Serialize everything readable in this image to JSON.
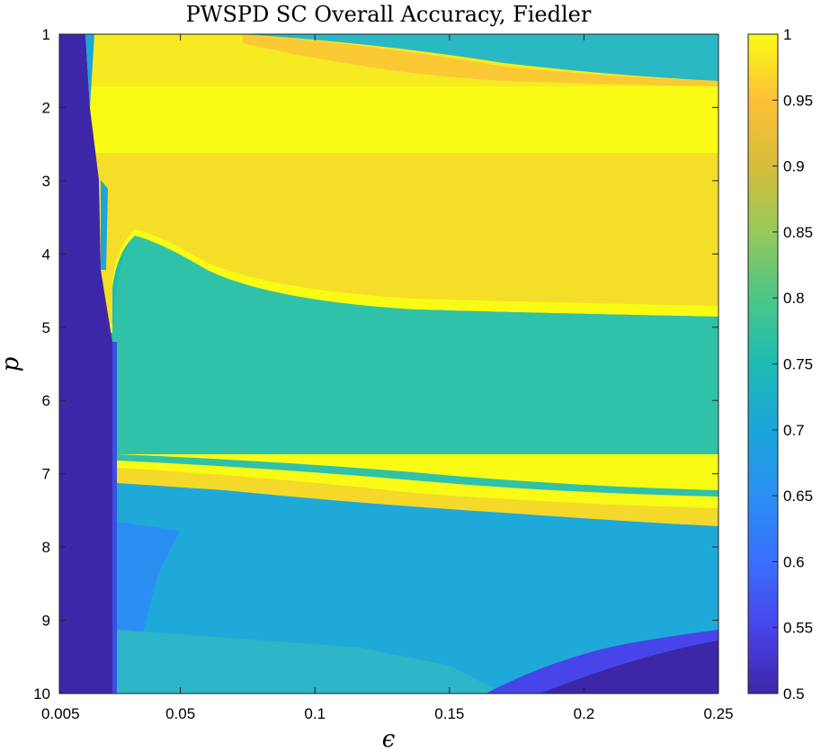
{
  "chart_data": {
    "type": "heatmap",
    "title": "PWSPD SC Overall Accuracy, Fiedler",
    "xlabel": "ϵ",
    "ylabel": "p",
    "x_range": [
      0.005,
      0.25
    ],
    "y_range": [
      1,
      10
    ],
    "x_ticks": [
      0.005,
      0.05,
      0.1,
      0.15,
      0.2,
      0.25
    ],
    "x_tick_labels": [
      "0.005",
      "0.05",
      "0.1",
      "0.15",
      "0.2",
      "0.25"
    ],
    "y_ticks": [
      1,
      2,
      3,
      4,
      5,
      6,
      7,
      8,
      9,
      10
    ],
    "y_tick_labels": [
      "1",
      "2",
      "3",
      "4",
      "5",
      "6",
      "7",
      "8",
      "9",
      "10"
    ],
    "y_direction": "reversed",
    "colormap": "parula",
    "color_range": [
      0.5,
      1
    ],
    "colorbar_ticks": [
      0.5,
      0.55,
      0.6,
      0.65,
      0.7,
      0.75,
      0.8,
      0.85,
      0.9,
      0.95,
      1
    ],
    "colorbar_tick_labels": [
      "0.5",
      "0.55",
      "0.6",
      "0.65",
      "0.7",
      "0.75",
      "0.8",
      "0.85",
      "0.9",
      "0.95",
      "1"
    ],
    "colorbar_location": "right",
    "grid": false,
    "regions": [
      {
        "p_range": [
          1.0,
          1.7
        ],
        "epsilon_range": [
          0.008,
          0.07
        ],
        "accuracy": 0.98
      },
      {
        "p_range": [
          1.0,
          1.7
        ],
        "epsilon_range": [
          0.07,
          0.25
        ],
        "accuracy": 0.8
      },
      {
        "p_range": [
          1.7,
          4.9
        ],
        "epsilon_range": [
          0.012,
          0.25
        ],
        "accuracy": 0.98
      },
      {
        "p_range": [
          4.9,
          6.8
        ],
        "epsilon_range": [
          0.025,
          0.25
        ],
        "accuracy": 0.76
      },
      {
        "p_range": [
          6.8,
          7.6
        ],
        "epsilon_range": [
          0.027,
          0.25
        ],
        "accuracy": 0.97
      },
      {
        "p_range": [
          7.6,
          10.0
        ],
        "epsilon_range": [
          0.027,
          0.25
        ],
        "accuracy": 0.7
      },
      {
        "p_range": [
          9.3,
          10.0
        ],
        "epsilon_range": [
          0.17,
          0.25
        ],
        "accuracy": 0.52
      },
      {
        "p_range": [
          1.0,
          10.0
        ],
        "epsilon_range": [
          0.005,
          0.012
        ],
        "accuracy": 0.52
      }
    ]
  }
}
